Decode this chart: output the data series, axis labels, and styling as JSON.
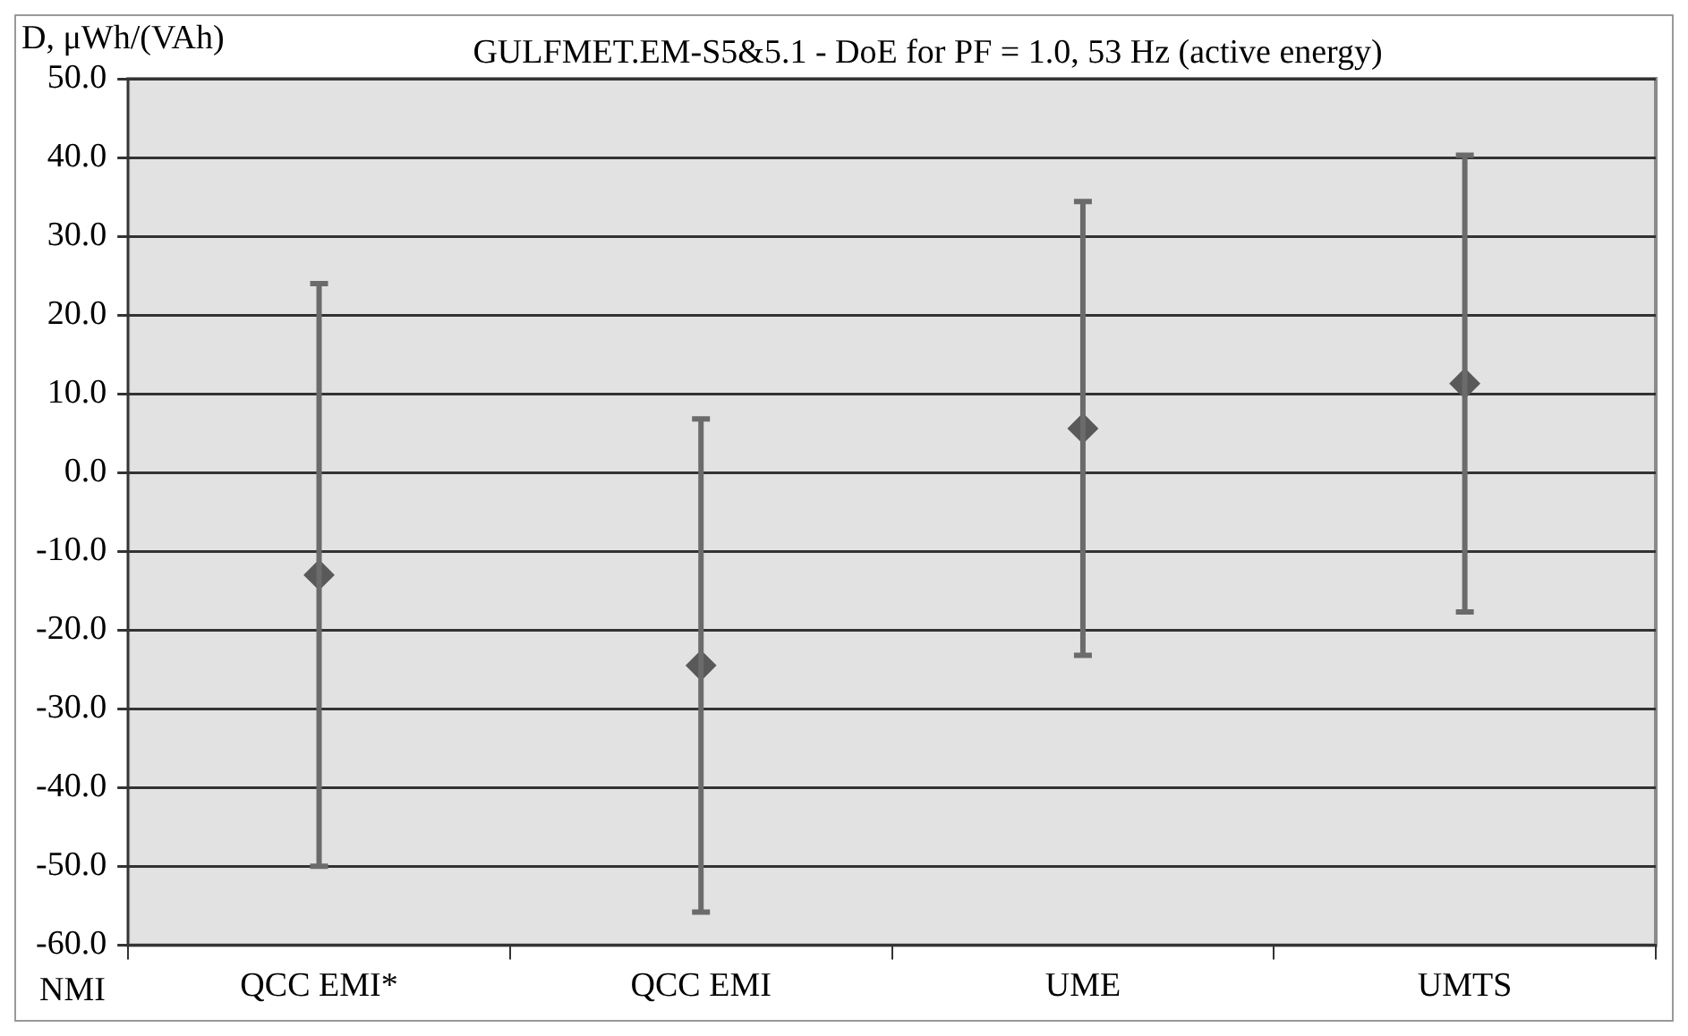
{
  "chart_data": {
    "type": "scatter",
    "title": "GULFMET.EM-S5&5.1 - DoE for PF = 1.0, 53 Hz (active energy)",
    "ylabel": "D, μWh/(VAh)",
    "xlabel": "NMI",
    "categories": [
      "QCC EMI*",
      "QCC EMI",
      "UME",
      "UMTS"
    ],
    "values": [
      -13.0,
      -24.5,
      5.6,
      11.3
    ],
    "errors": [
      37.0,
      31.3,
      28.8,
      29.0
    ],
    "color": "#595959",
    "marker": "diamond",
    "grid": "y",
    "ylim": [
      -60,
      50
    ],
    "yticks": [
      {
        "value": -60,
        "label": "-60.0"
      },
      {
        "value": -50,
        "label": "-50.0"
      },
      {
        "value": -40,
        "label": "-40.0"
      },
      {
        "value": -30,
        "label": "-30.0"
      },
      {
        "value": -20,
        "label": "-20.0"
      },
      {
        "value": -10,
        "label": "-10.0"
      },
      {
        "value": 0,
        "label": "0.0"
      },
      {
        "value": 10,
        "label": "10.0"
      },
      {
        "value": 20,
        "label": "20.0"
      },
      {
        "value": 30,
        "label": "30.0"
      },
      {
        "value": 40,
        "label": "40.0"
      },
      {
        "value": 50,
        "label": "50.0"
      }
    ]
  }
}
